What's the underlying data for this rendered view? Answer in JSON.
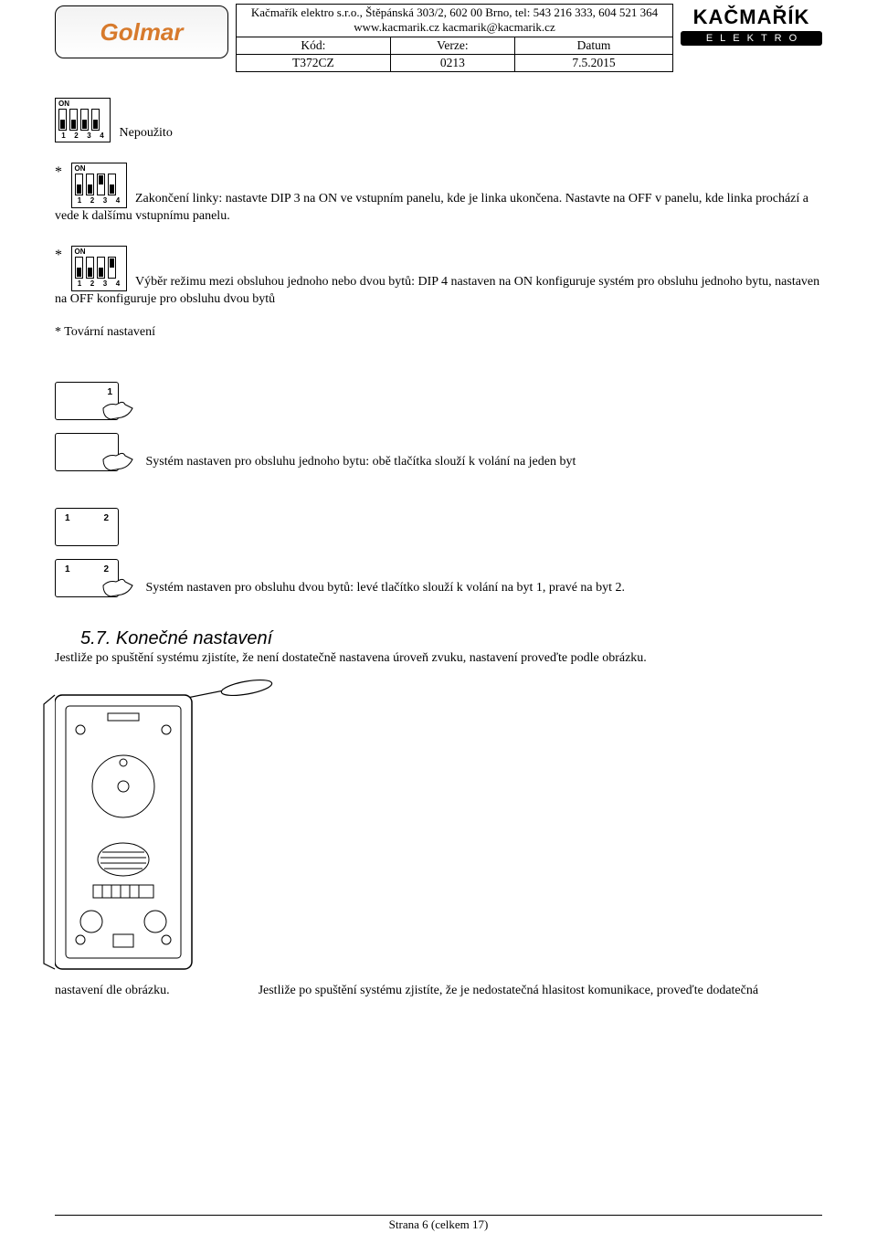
{
  "header": {
    "company_line": "Kačmařík elektro s.r.o., Štěpánská 303/2, 602 00  Brno, tel: 543 216 333, 604 521 364",
    "web_line": "www.kacmarik.cz     kacmarik@kacmarik.cz",
    "col_kod": "Kód:",
    "col_verze": "Verze:",
    "col_datum": "Datum",
    "val_kod": "T372CZ",
    "val_verze": "0213",
    "val_datum": "7.5.2015",
    "logo_golmar": "Golmar",
    "logo_kacmarik_top": "KAČMAŘÍK",
    "logo_kacmarik_sub": "ELEKTRO"
  },
  "dip_label_on": "ON",
  "dip_nums": [
    "1",
    "2",
    "3",
    "4"
  ],
  "texts": {
    "nepouzito": "Nepoužito",
    "zakonceni": "Zakončení linky: nastavte DIP 3 na ON ve vstupním panelu, kde je linka ukončena. Nastavte na OFF v panelu, kde linka prochází a vede k dalšímu vstupnímu panelu.",
    "vyber": "Výběr režimu mezi obsluhou jednoho nebo dvou bytů: DIP 4 nastaven na ON konfiguruje systém pro obsluhu jednoho bytu, nastaven na OFF konfiguruje pro obsluhu dvou bytů",
    "tovarni": "* Tovární nastavení",
    "system_jeden": "Systém nastaven pro obsluhu jednoho bytu: obě tlačítka slouží k volání na jeden byt",
    "system_dva": "Systém nastaven pro obsluhu dvou bytů: levé tlačítko slouží k volání na byt 1, pravé na byt 2.",
    "section": "5.7. Konečné nastavení",
    "konecne_p1": "Jestliže po spuštění systému zjistíte, že není dostatečně nastavena úroveň zvuku, nastavení proveďte podle obrázku.",
    "konecne_p2_a": "Jestliže po spuštění systému zjistíte, že je nedostatečná hlasitost komunikace, proveďte dodatečná",
    "konecne_p2_b": "nastavení dle obrázku."
  },
  "panel_labels": {
    "one": "1",
    "two": "2"
  },
  "footer": "Strana 6 (celkem 17)",
  "dip_configs": {
    "a": [
      "down",
      "down",
      "down",
      "down"
    ],
    "b": [
      "down",
      "down",
      "up",
      "down"
    ],
    "c": [
      "down",
      "down",
      "down",
      "up"
    ]
  },
  "colors": {
    "text": "#000000",
    "background": "#ffffff",
    "golmar_orange": "#d77a2c",
    "border": "#000000"
  }
}
